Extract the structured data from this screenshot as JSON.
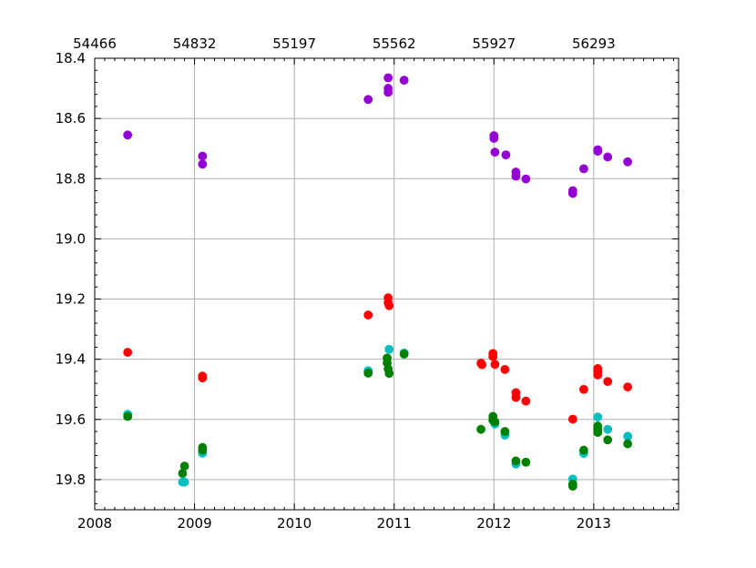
{
  "chart_data": {
    "type": "scatter",
    "xlim": [
      2008.0,
      2013.85
    ],
    "ylim": [
      18.4,
      19.9
    ],
    "y_inverted": true,
    "grid": true,
    "xticks": [
      2008,
      2009,
      2010,
      2011,
      2012,
      2013
    ],
    "xtick_labels": [
      "2008",
      "2009",
      "2010",
      "2011",
      "2012",
      "2013"
    ],
    "x2ticks": [
      54466,
      54832,
      55197,
      55562,
      55927,
      56293
    ],
    "x2tick_labels": [
      "54466",
      "54832",
      "55197",
      "55562",
      "55927",
      "56293"
    ],
    "yticks": [
      18.4,
      18.6,
      18.8,
      19.0,
      19.2,
      19.4,
      19.6,
      19.8
    ],
    "ytick_labels": [
      "18.4",
      "18.6",
      "18.8",
      "19.0",
      "19.2",
      "19.4",
      "19.6",
      "19.8"
    ],
    "series": [
      {
        "color": "#9400d3",
        "points": [
          [
            2008.33,
            18.655
          ],
          [
            2009.08,
            18.725
          ],
          [
            2009.08,
            18.752
          ],
          [
            2010.74,
            18.537
          ],
          [
            2010.94,
            18.465
          ],
          [
            2010.94,
            18.5
          ],
          [
            2010.94,
            18.513
          ],
          [
            2011.1,
            18.473
          ],
          [
            2012.0,
            18.657
          ],
          [
            2012.0,
            18.666
          ],
          [
            2012.01,
            18.712
          ],
          [
            2012.12,
            18.721
          ],
          [
            2012.22,
            18.778
          ],
          [
            2012.22,
            18.792
          ],
          [
            2012.32,
            18.801
          ],
          [
            2012.79,
            18.84
          ],
          [
            2012.79,
            18.849
          ],
          [
            2012.9,
            18.767
          ],
          [
            2013.04,
            18.704
          ],
          [
            2013.04,
            18.709
          ],
          [
            2013.14,
            18.728
          ],
          [
            2013.34,
            18.744
          ]
        ]
      },
      {
        "color": "#ff0000",
        "points": [
          [
            2008.33,
            19.377
          ],
          [
            2009.08,
            19.456
          ],
          [
            2009.08,
            19.462
          ],
          [
            2010.74,
            19.253
          ],
          [
            2010.94,
            19.196
          ],
          [
            2010.94,
            19.212
          ],
          [
            2010.95,
            19.222
          ],
          [
            2011.87,
            19.413
          ],
          [
            2011.88,
            19.418
          ],
          [
            2011.99,
            19.381
          ],
          [
            2011.99,
            19.391
          ],
          [
            2012.01,
            19.417
          ],
          [
            2012.11,
            19.434
          ],
          [
            2012.22,
            19.511
          ],
          [
            2012.22,
            19.527
          ],
          [
            2012.32,
            19.539
          ],
          [
            2012.79,
            19.599
          ],
          [
            2012.9,
            19.5
          ],
          [
            2013.04,
            19.431
          ],
          [
            2013.04,
            19.441
          ],
          [
            2013.04,
            19.452
          ],
          [
            2013.14,
            19.474
          ],
          [
            2013.34,
            19.492
          ]
        ]
      },
      {
        "color": "#00bfbf",
        "points": [
          [
            2008.33,
            19.583
          ],
          [
            2008.88,
            19.808
          ],
          [
            2008.9,
            19.808
          ],
          [
            2009.08,
            19.712
          ],
          [
            2010.74,
            19.438
          ],
          [
            2010.95,
            19.367
          ],
          [
            2011.1,
            19.379
          ],
          [
            2011.99,
            19.599
          ],
          [
            2012.01,
            19.615
          ],
          [
            2012.11,
            19.652
          ],
          [
            2012.22,
            19.748
          ],
          [
            2012.79,
            19.798
          ],
          [
            2012.9,
            19.713
          ],
          [
            2013.04,
            19.592
          ],
          [
            2013.14,
            19.633
          ],
          [
            2013.34,
            19.656
          ]
        ]
      },
      {
        "color": "#008000",
        "points": [
          [
            2008.33,
            19.59
          ],
          [
            2008.88,
            19.779
          ],
          [
            2008.9,
            19.755
          ],
          [
            2009.08,
            19.693
          ],
          [
            2009.08,
            19.702
          ],
          [
            2010.74,
            19.446
          ],
          [
            2010.93,
            19.396
          ],
          [
            2010.93,
            19.412
          ],
          [
            2010.94,
            19.432
          ],
          [
            2010.95,
            19.447
          ],
          [
            2011.1,
            19.383
          ],
          [
            2011.87,
            19.633
          ],
          [
            2011.99,
            19.59
          ],
          [
            2011.99,
            19.603
          ],
          [
            2012.01,
            19.608
          ],
          [
            2012.11,
            19.64
          ],
          [
            2012.22,
            19.738
          ],
          [
            2012.32,
            19.742
          ],
          [
            2012.79,
            19.815
          ],
          [
            2012.79,
            19.822
          ],
          [
            2012.9,
            19.702
          ],
          [
            2013.04,
            19.622
          ],
          [
            2013.04,
            19.633
          ],
          [
            2013.04,
            19.643
          ],
          [
            2013.14,
            19.668
          ],
          [
            2013.34,
            19.681
          ]
        ]
      }
    ]
  }
}
